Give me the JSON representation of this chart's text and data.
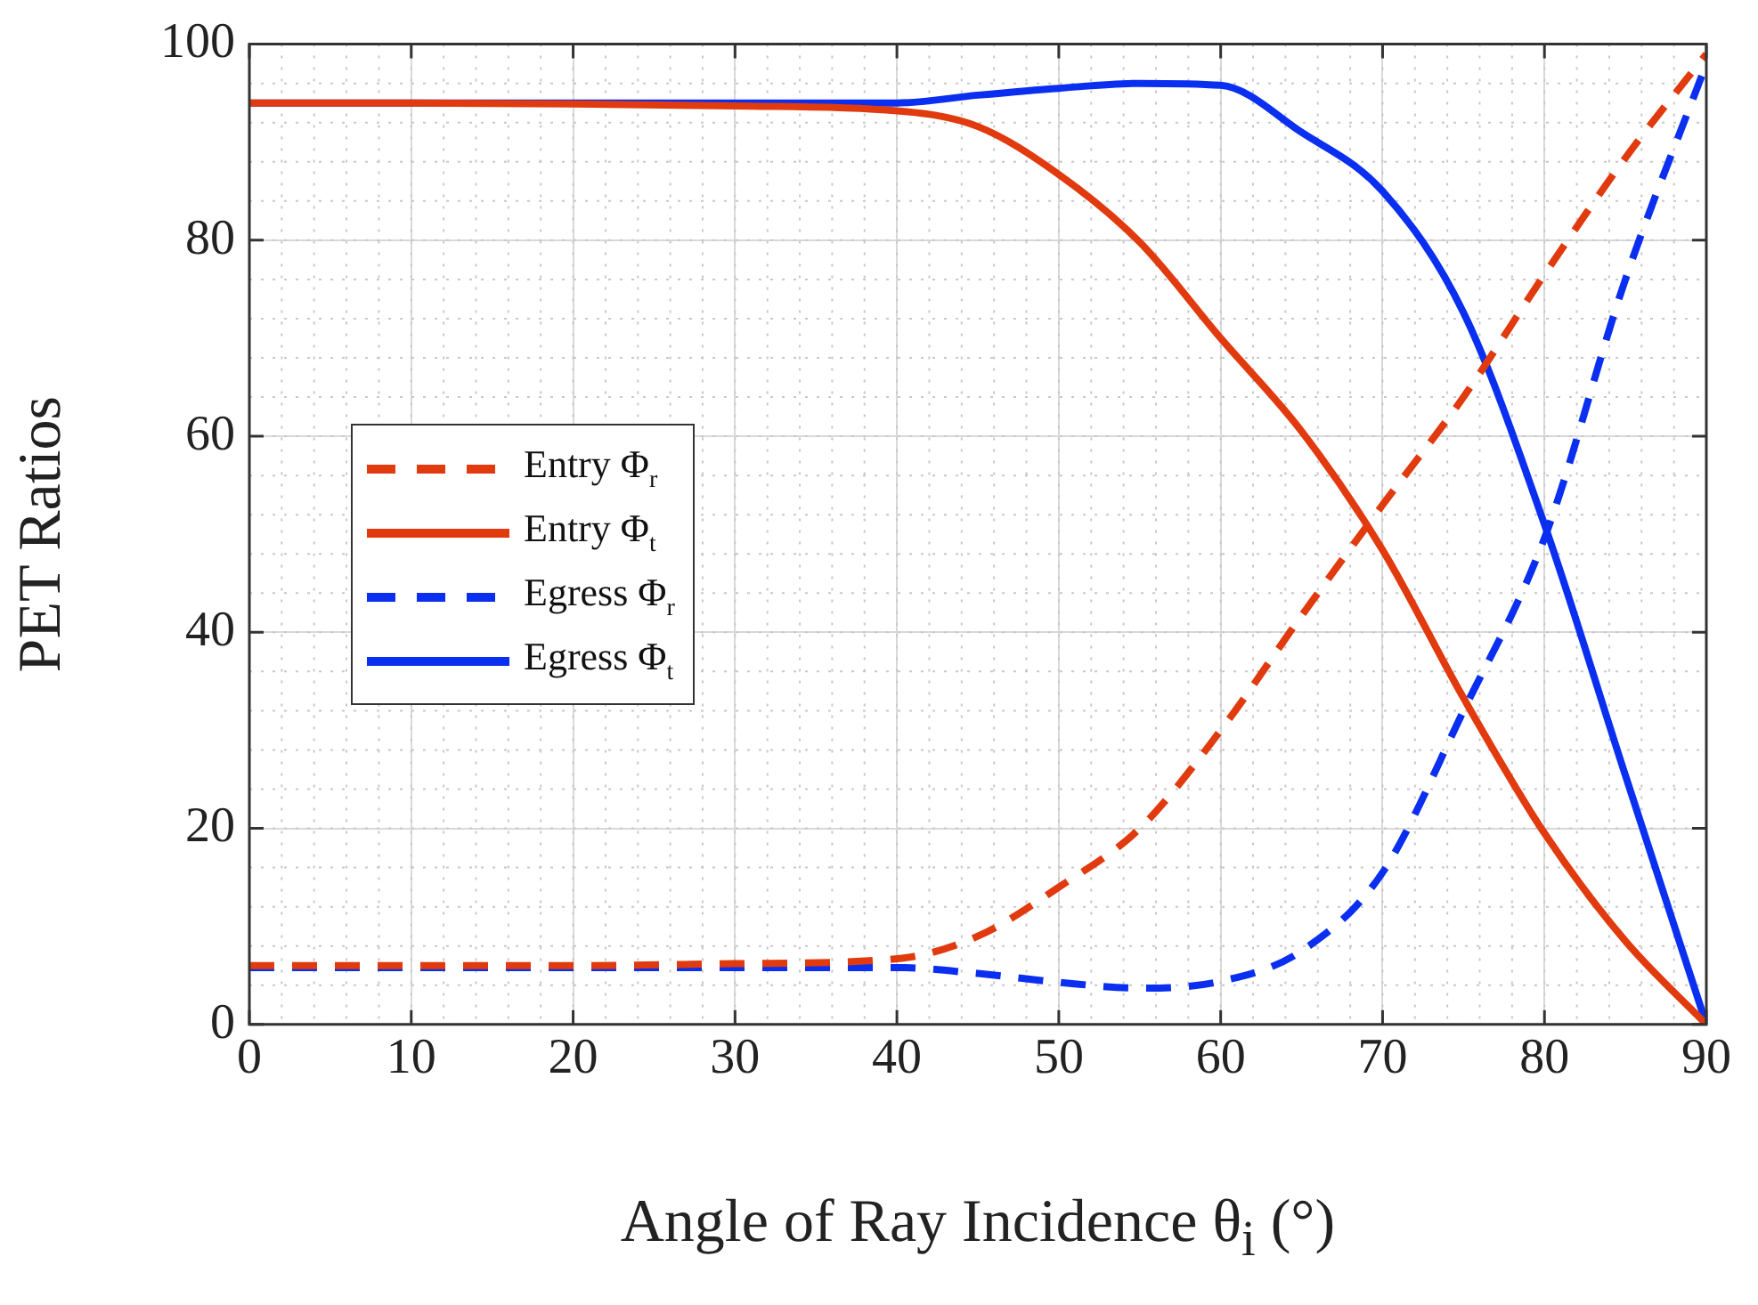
{
  "chart_data": {
    "type": "line",
    "xlabel": "Angle of Ray Incidence θ$_{i}$ (°)",
    "ylabel": "PET Ratios",
    "x": [
      0,
      10,
      20,
      30,
      40,
      45,
      50,
      55,
      60,
      65,
      70,
      75,
      80,
      85,
      90
    ],
    "series": [
      {
        "name": "Entry Φ$_{r}$",
        "color": "#e03a0e",
        "line_style": "dashed",
        "values": [
          6,
          6,
          6,
          6.2,
          6.7,
          9,
          14,
          20,
          30,
          41.7,
          53,
          64,
          76.5,
          88.4,
          99
        ]
      },
      {
        "name": "Entry Φ$_{t}$",
        "color": "#e03a0e",
        "line_style": "solid",
        "values": [
          94,
          94,
          93.9,
          93.7,
          93.2,
          91.6,
          86.7,
          79.8,
          70,
          60.5,
          48.4,
          33.3,
          19.5,
          8.5,
          0
        ]
      },
      {
        "name": "Egress Φ$_{r}$",
        "color": "#0a2ff0",
        "line_style": "dashed",
        "values": [
          5.8,
          5.8,
          5.8,
          5.8,
          5.8,
          5.2,
          4.3,
          3.7,
          4.4,
          7.5,
          15.5,
          32,
          49.6,
          76,
          98
        ]
      },
      {
        "name": "Egress Φ$_{t}$",
        "color": "#0a2ff0",
        "line_style": "solid",
        "values": [
          94,
          94,
          94,
          94,
          94,
          94.8,
          95.5,
          96,
          95.8,
          91,
          85,
          72.6,
          51,
          25.4,
          0
        ]
      }
    ],
    "xlim": [
      0,
      90
    ],
    "xticks": [
      0,
      10,
      20,
      30,
      40,
      50,
      60,
      70,
      80,
      90
    ],
    "ylim": [
      0,
      100
    ],
    "yticks": [
      0,
      20,
      40,
      60,
      80,
      100
    ],
    "grid": true,
    "legend": "left",
    "marker": "none"
  }
}
